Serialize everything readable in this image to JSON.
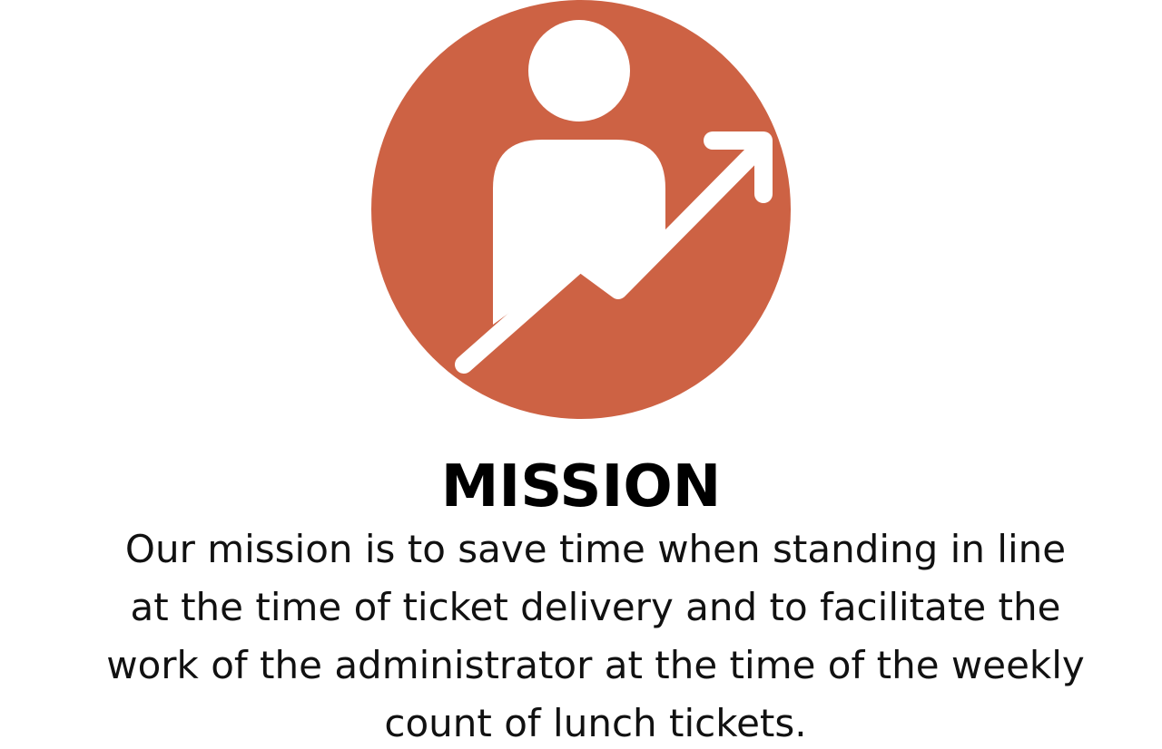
{
  "icon": {
    "name": "person-growth-arrow-icon",
    "circle_color": "#CD6244",
    "glyph_color": "#FFFFFF"
  },
  "heading": {
    "text": "MISSION"
  },
  "body": {
    "lines": [
      "Our mission is to save time when standing in line",
      "at the time of ticket delivery and to facilitate the",
      "work of the administrator at the time of the weekly",
      "count of lunch tickets."
    ]
  }
}
